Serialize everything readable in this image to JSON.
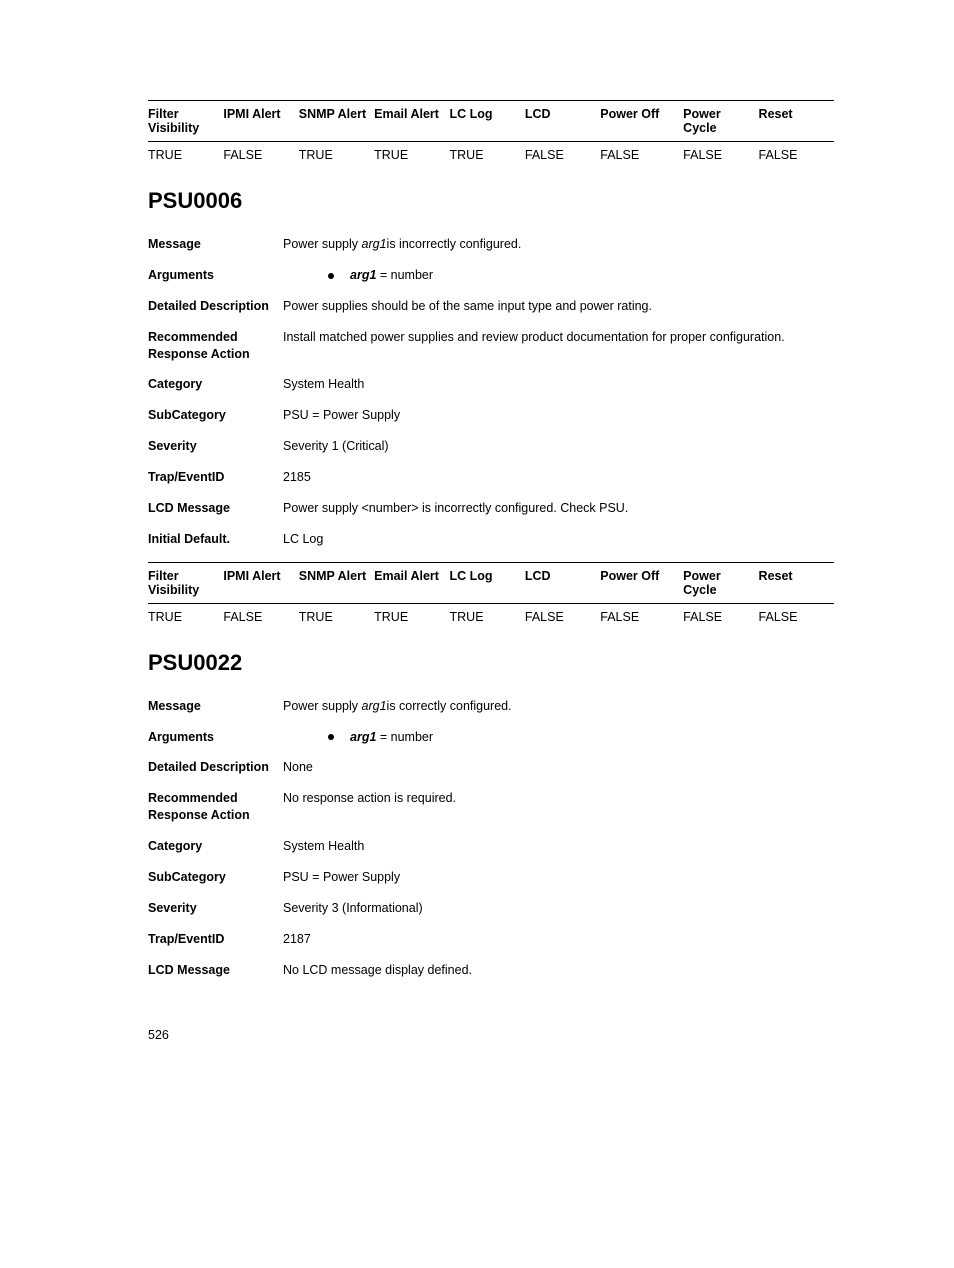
{
  "page_number": "526",
  "table_headers": [
    "Filter Visibility",
    "IPMI Alert",
    "SNMP Alert",
    "Email Alert",
    "LC Log",
    "LCD",
    "Power Off",
    "Power Cycle",
    "Reset"
  ],
  "top_table": {
    "row": [
      "TRUE",
      "FALSE",
      "TRUE",
      "TRUE",
      "TRUE",
      "FALSE",
      "FALSE",
      "FALSE",
      "FALSE"
    ]
  },
  "sections": [
    {
      "title": "PSU0006",
      "fields": [
        {
          "label": "Message",
          "type": "msg",
          "prefix": "Power supply ",
          "arg": "arg1",
          "suffix": "is incorrectly configured."
        },
        {
          "label": "Arguments",
          "type": "arg",
          "arg": "arg1",
          "eq": " = ",
          "val": "number"
        },
        {
          "label": "Detailed Description",
          "type": "text",
          "value": "Power supplies should be of the same input type and power rating."
        },
        {
          "label": "Recommended Response Action",
          "type": "text",
          "value": "Install matched power supplies and review product documentation for proper configuration."
        },
        {
          "label": "Category",
          "type": "text",
          "value": "System Health"
        },
        {
          "label": "SubCategory",
          "type": "text",
          "value": "PSU = Power Supply"
        },
        {
          "label": "Severity",
          "type": "text",
          "value": "Severity 1 (Critical)"
        },
        {
          "label": "Trap/EventID",
          "type": "text",
          "value": "2185"
        },
        {
          "label": "LCD Message",
          "type": "text",
          "value": "Power supply <number> is incorrectly configured. Check PSU."
        },
        {
          "label": "Initial Default.",
          "type": "text",
          "value": "LC Log"
        }
      ],
      "table_row": [
        "TRUE",
        "FALSE",
        "TRUE",
        "TRUE",
        "TRUE",
        "FALSE",
        "FALSE",
        "FALSE",
        "FALSE"
      ]
    },
    {
      "title": "PSU0022",
      "fields": [
        {
          "label": "Message",
          "type": "msg",
          "prefix": "Power supply ",
          "arg": "arg1",
          "suffix": "is correctly configured."
        },
        {
          "label": "Arguments",
          "type": "arg",
          "arg": "arg1",
          "eq": " = ",
          "val": "number"
        },
        {
          "label": "Detailed Description",
          "type": "text",
          "value": "None"
        },
        {
          "label": "Recommended Response Action",
          "type": "text",
          "value": "No response action is required."
        },
        {
          "label": "Category",
          "type": "text",
          "value": "System Health"
        },
        {
          "label": "SubCategory",
          "type": "text",
          "value": "PSU = Power Supply"
        },
        {
          "label": "Severity",
          "type": "text",
          "value": "Severity 3 (Informational)"
        },
        {
          "label": "Trap/EventID",
          "type": "text",
          "value": "2187"
        },
        {
          "label": "LCD Message",
          "type": "text",
          "value": "No LCD message display defined."
        }
      ]
    }
  ]
}
